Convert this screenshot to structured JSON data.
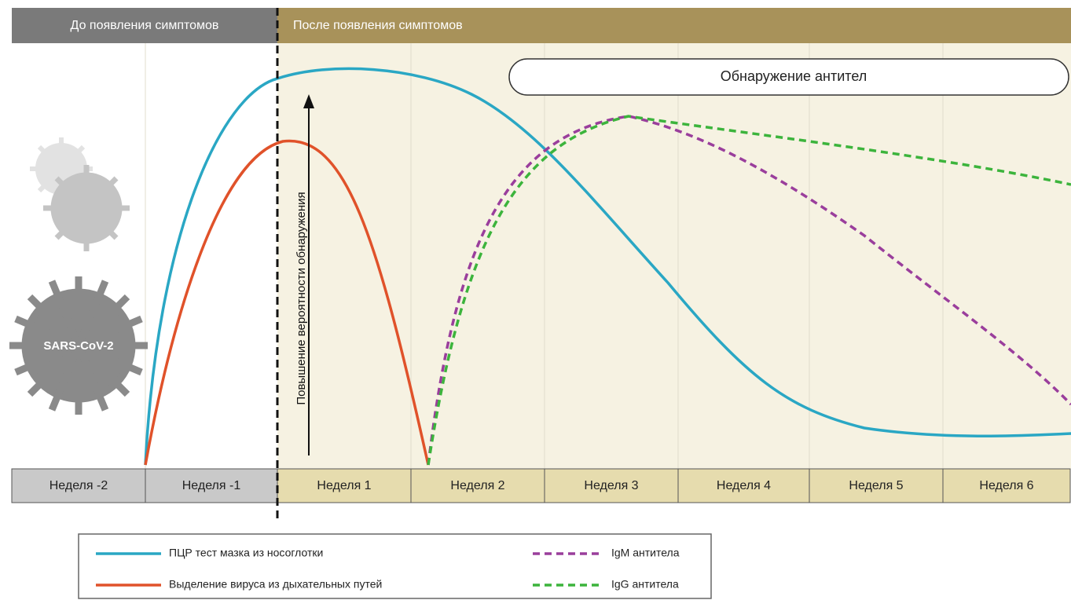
{
  "header": {
    "before": "До появления симптомов",
    "after": "После появления симптомов"
  },
  "weeks": [
    "Неделя -2",
    "Неделя -1",
    "Неделя 1",
    "Неделя 2",
    "Неделя 3",
    "Неделя 4",
    "Неделя 5",
    "Неделя 6"
  ],
  "antibody_label": "Обнаружение антител",
  "arrow_label": "Повышение вероятности обнаружения",
  "virus_label": "SARS-CoV-2",
  "legend": [
    "ПЦР тест мазка из носоглотки",
    "Выделение вируса из дыхательных путей",
    "IgM антитела",
    "IgG антитела"
  ]
}
